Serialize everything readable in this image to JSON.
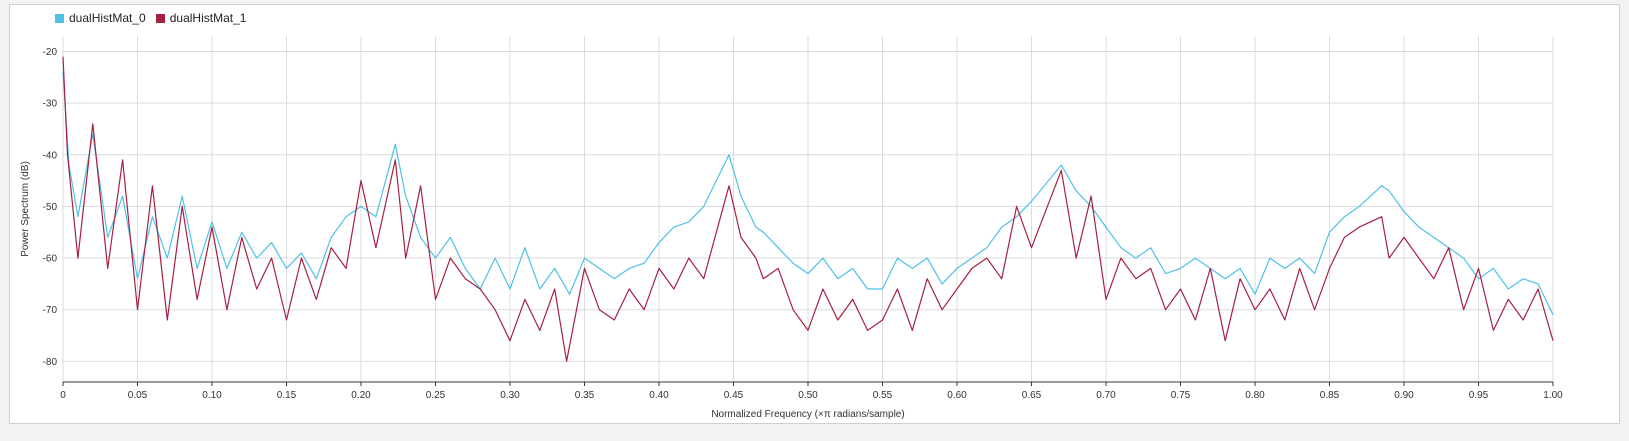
{
  "chart_data": {
    "type": "line",
    "xlabel": "Normalized Frequency (×π radians/sample)",
    "ylabel": "Power Spectrum (dB)",
    "xlim": [
      0,
      1
    ],
    "ylim": [
      -84,
      -17
    ],
    "grid": true,
    "legend_position": "top-left",
    "x_ticks": [
      "0",
      "0.05",
      "0.10",
      "0.15",
      "0.20",
      "0.25",
      "0.30",
      "0.35",
      "0.40",
      "0.45",
      "0.50",
      "0.55",
      "0.60",
      "0.65",
      "0.70",
      "0.75",
      "0.80",
      "0.85",
      "0.90",
      "0.95",
      "1.00"
    ],
    "y_ticks": [
      "-20",
      "-30",
      "-40",
      "-50",
      "-60",
      "-70",
      "-80"
    ],
    "series": [
      {
        "name": "dualHistMat_0",
        "color": "#4fc1e9",
        "x": [
          0,
          0.004,
          0.01,
          0.02,
          0.03,
          0.04,
          0.05,
          0.06,
          0.07,
          0.08,
          0.09,
          0.1,
          0.11,
          0.12,
          0.13,
          0.14,
          0.15,
          0.16,
          0.17,
          0.18,
          0.19,
          0.2,
          0.21,
          0.223,
          0.23,
          0.24,
          0.25,
          0.26,
          0.27,
          0.28,
          0.29,
          0.3,
          0.31,
          0.32,
          0.33,
          0.34,
          0.35,
          0.36,
          0.37,
          0.38,
          0.39,
          0.4,
          0.41,
          0.42,
          0.43,
          0.447,
          0.455,
          0.465,
          0.47,
          0.48,
          0.49,
          0.5,
          0.51,
          0.52,
          0.53,
          0.54,
          0.55,
          0.56,
          0.57,
          0.58,
          0.59,
          0.6,
          0.61,
          0.62,
          0.63,
          0.64,
          0.65,
          0.67,
          0.68,
          0.69,
          0.7,
          0.71,
          0.72,
          0.73,
          0.74,
          0.75,
          0.76,
          0.77,
          0.78,
          0.79,
          0.8,
          0.81,
          0.82,
          0.83,
          0.84,
          0.85,
          0.86,
          0.87,
          0.885,
          0.89,
          0.9,
          0.91,
          0.92,
          0.93,
          0.94,
          0.95,
          0.96,
          0.97,
          0.98,
          0.99,
          1.0
        ],
        "y": [
          -24,
          -42,
          -52,
          -36,
          -56,
          -48,
          -64,
          -52,
          -60,
          -48,
          -62,
          -53,
          -62,
          -55,
          -60,
          -57,
          -62,
          -59,
          -64,
          -56,
          -52,
          -50,
          -52,
          -38,
          -48,
          -56,
          -60,
          -56,
          -62,
          -66,
          -60,
          -66,
          -58,
          -66,
          -62,
          -67,
          -60,
          -62,
          -64,
          -62,
          -61,
          -57,
          -54,
          -53,
          -50,
          -40,
          -48,
          -54,
          -55,
          -58,
          -61,
          -63,
          -60,
          -64,
          -62,
          -66,
          -66,
          -60,
          -62,
          -60,
          -65,
          -62,
          -60,
          -58,
          -54,
          -52,
          -49,
          -42,
          -47,
          -50,
          -54,
          -58,
          -60,
          -58,
          -63,
          -62,
          -60,
          -62,
          -64,
          -62,
          -67,
          -60,
          -62,
          -60,
          -63,
          -55,
          -52,
          -50,
          -46,
          -47,
          -51,
          -54,
          -56,
          -58,
          -60,
          -64,
          -62,
          -66,
          -64,
          -65,
          -71
        ]
      },
      {
        "name": "dualHistMat_1",
        "color": "#a5213f",
        "x": [
          0,
          0.003,
          0.01,
          0.02,
          0.03,
          0.04,
          0.05,
          0.06,
          0.07,
          0.08,
          0.09,
          0.1,
          0.11,
          0.12,
          0.13,
          0.14,
          0.15,
          0.16,
          0.17,
          0.18,
          0.19,
          0.2,
          0.21,
          0.223,
          0.23,
          0.24,
          0.25,
          0.26,
          0.27,
          0.28,
          0.29,
          0.3,
          0.31,
          0.32,
          0.33,
          0.338,
          0.35,
          0.36,
          0.37,
          0.38,
          0.39,
          0.4,
          0.41,
          0.42,
          0.43,
          0.447,
          0.455,
          0.465,
          0.47,
          0.48,
          0.49,
          0.5,
          0.51,
          0.52,
          0.53,
          0.54,
          0.55,
          0.56,
          0.57,
          0.58,
          0.59,
          0.6,
          0.61,
          0.62,
          0.63,
          0.64,
          0.65,
          0.67,
          0.68,
          0.69,
          0.7,
          0.71,
          0.72,
          0.73,
          0.74,
          0.75,
          0.76,
          0.77,
          0.78,
          0.79,
          0.8,
          0.81,
          0.82,
          0.83,
          0.84,
          0.85,
          0.86,
          0.87,
          0.885,
          0.89,
          0.9,
          0.91,
          0.92,
          0.93,
          0.94,
          0.95,
          0.96,
          0.97,
          0.98,
          0.99,
          1.0
        ],
        "y": [
          -21,
          -40,
          -60,
          -34,
          -62,
          -41,
          -70,
          -46,
          -72,
          -50,
          -68,
          -54,
          -70,
          -56,
          -66,
          -60,
          -72,
          -60,
          -68,
          -58,
          -62,
          -45,
          -58,
          -41,
          -60,
          -46,
          -68,
          -60,
          -64,
          -66,
          -70,
          -76,
          -68,
          -74,
          -66,
          -80,
          -62,
          -70,
          -72,
          -66,
          -70,
          -62,
          -66,
          -60,
          -64,
          -46,
          -56,
          -60,
          -64,
          -62,
          -70,
          -74,
          -66,
          -72,
          -68,
          -74,
          -72,
          -66,
          -74,
          -64,
          -70,
          -66,
          -62,
          -60,
          -64,
          -50,
          -58,
          -43,
          -60,
          -48,
          -68,
          -60,
          -64,
          -62,
          -70,
          -66,
          -72,
          -62,
          -76,
          -64,
          -70,
          -66,
          -72,
          -62,
          -70,
          -62,
          -56,
          -54,
          -52,
          -60,
          -56,
          -60,
          -64,
          -58,
          -70,
          -62,
          -74,
          -68,
          -72,
          -66,
          -76
        ]
      }
    ]
  }
}
